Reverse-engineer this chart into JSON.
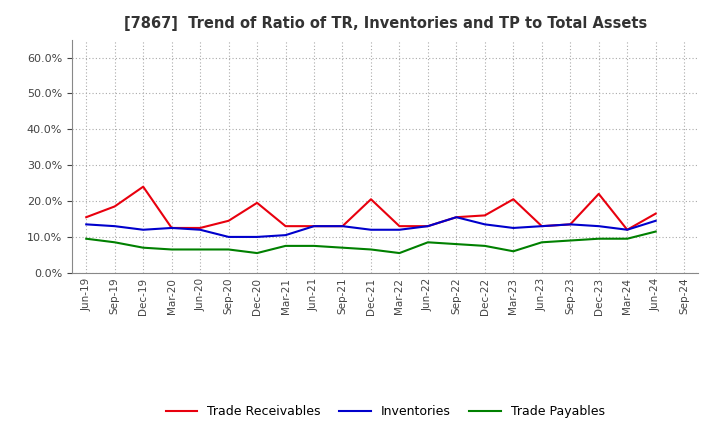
{
  "title": "[7867]  Trend of Ratio of TR, Inventories and TP to Total Assets",
  "x_labels": [
    "Jun-19",
    "Sep-19",
    "Dec-19",
    "Mar-20",
    "Jun-20",
    "Sep-20",
    "Dec-20",
    "Mar-21",
    "Jun-21",
    "Sep-21",
    "Dec-21",
    "Mar-22",
    "Jun-22",
    "Sep-22",
    "Dec-22",
    "Mar-23",
    "Jun-23",
    "Sep-23",
    "Dec-23",
    "Mar-24",
    "Jun-24",
    "Sep-24"
  ],
  "trade_receivables": [
    0.155,
    0.185,
    0.24,
    0.125,
    0.125,
    0.145,
    0.195,
    0.13,
    0.13,
    0.13,
    0.205,
    0.13,
    0.13,
    0.155,
    0.16,
    0.205,
    0.13,
    0.135,
    0.22,
    0.12,
    0.165,
    null
  ],
  "inventories": [
    0.135,
    0.13,
    0.12,
    0.125,
    0.12,
    0.1,
    0.1,
    0.105,
    0.13,
    0.13,
    0.12,
    0.12,
    0.13,
    0.155,
    0.135,
    0.125,
    0.13,
    0.135,
    0.13,
    0.12,
    0.145,
    null
  ],
  "trade_payables": [
    0.095,
    0.085,
    0.07,
    0.065,
    0.065,
    0.065,
    0.055,
    0.075,
    0.075,
    0.07,
    0.065,
    0.055,
    0.085,
    0.08,
    0.075,
    0.06,
    0.085,
    0.09,
    0.095,
    0.095,
    0.115,
    null
  ],
  "tr_color": "#e8000e",
  "inv_color": "#0000cc",
  "tp_color": "#008000",
  "ylim": [
    0.0,
    0.65
  ],
  "yticks": [
    0.0,
    0.1,
    0.2,
    0.3,
    0.4,
    0.5,
    0.6
  ],
  "bg_color": "#ffffff",
  "plot_bg_color": "#ffffff",
  "grid_color": "#aaaaaa",
  "legend_labels": [
    "Trade Receivables",
    "Inventories",
    "Trade Payables"
  ]
}
